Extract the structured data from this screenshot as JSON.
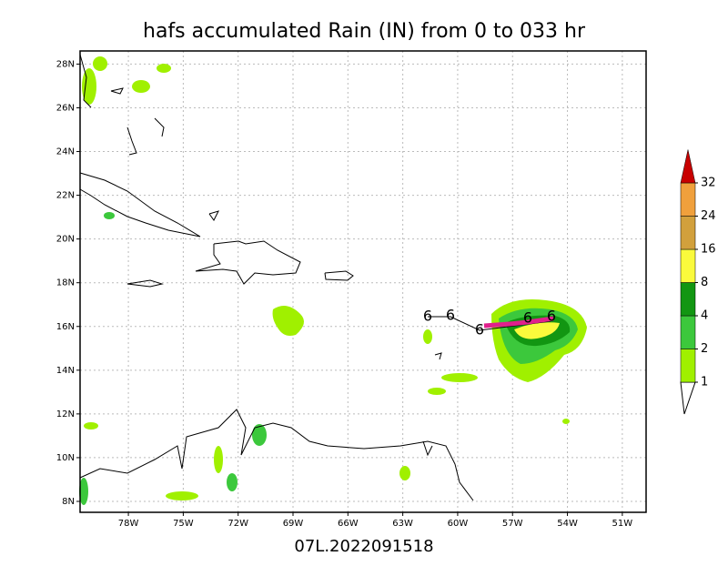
{
  "title": "hafs accumulated Rain (IN) from 0 to 033 hr",
  "footer": "07L.2022091518",
  "map": {
    "lon_range": [
      -80.64,
      -49.7
    ],
    "lat_range": [
      7.5,
      28.6
    ],
    "lon_ticks": [
      {
        "value": -78,
        "label": "78W"
      },
      {
        "value": -75,
        "label": "75W"
      },
      {
        "value": -72,
        "label": "72W"
      },
      {
        "value": -69,
        "label": "69W"
      },
      {
        "value": -66,
        "label": "66W"
      },
      {
        "value": -63,
        "label": "63W"
      },
      {
        "value": -60,
        "label": "60W"
      },
      {
        "value": -57,
        "label": "57W"
      },
      {
        "value": -54,
        "label": "54W"
      },
      {
        "value": -51,
        "label": "51W"
      }
    ],
    "lat_ticks": [
      {
        "value": 8,
        "label": "8N"
      },
      {
        "value": 10,
        "label": "10N"
      },
      {
        "value": 12,
        "label": "12N"
      },
      {
        "value": 14,
        "label": "14N"
      },
      {
        "value": 16,
        "label": "16N"
      },
      {
        "value": 18,
        "label": "18N"
      },
      {
        "value": 20,
        "label": "20N"
      },
      {
        "value": 22,
        "label": "22N"
      },
      {
        "value": 24,
        "label": "24N"
      },
      {
        "value": 26,
        "label": "26N"
      },
      {
        "value": 28,
        "label": "28N"
      }
    ]
  },
  "colorbar": {
    "levels": [
      1,
      2,
      4,
      8,
      16,
      24,
      32
    ],
    "colors": [
      "#a0f000",
      "#3cc83c",
      "#129612",
      "#fafa3c",
      "#d2a03c",
      "#f0a03c",
      "#c80000"
    ]
  }
}
